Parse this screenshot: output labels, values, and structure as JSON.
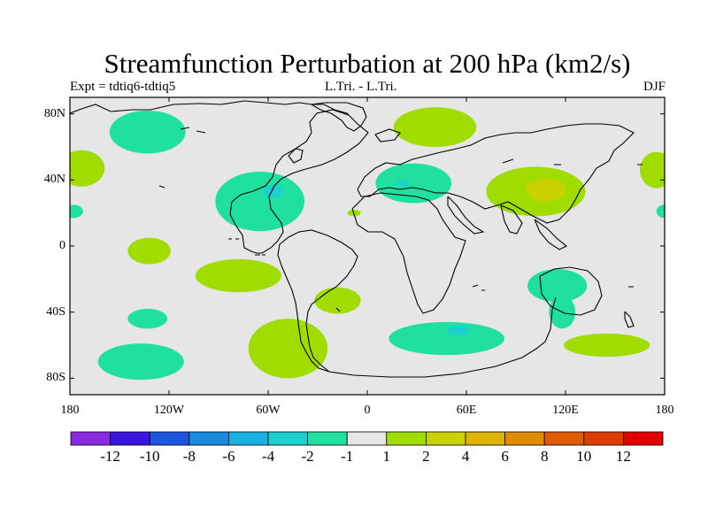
{
  "title": "Streamfunction Perturbation at 200 hPa (km2/s)",
  "left_subtitle": "Expt = tdtiq6-tdtiq5",
  "center_subtitle": "L.Tri. - L.Tri.",
  "right_subtitle": "DJF",
  "x_axis": {
    "tick_labels": [
      "180",
      "120W",
      "60W",
      "0",
      "60E",
      "120E",
      "180"
    ],
    "tick_lon": [
      -180,
      -120,
      -60,
      0,
      60,
      120,
      180
    ]
  },
  "y_axis": {
    "tick_labels": [
      "80N",
      "40N",
      "0",
      "40S",
      "80S"
    ],
    "tick_lat": [
      80,
      40,
      0,
      -40,
      -80
    ]
  },
  "colorbar": {
    "labels": [
      "-12",
      "-10",
      "-8",
      "-6",
      "-4",
      "-2",
      "-1",
      "1",
      "2",
      "4",
      "6",
      "8",
      "10",
      "12"
    ],
    "colors": [
      "#8a2be2",
      "#3a14e0",
      "#1e55e0",
      "#1a8ce0",
      "#18b2e0",
      "#1cd0d0",
      "#20e0a0",
      "#e6e6e6",
      "#a0dc00",
      "#c8d200",
      "#dcb400",
      "#e08c00",
      "#e05a00",
      "#e03c00",
      "#e00000"
    ]
  },
  "map": {
    "background_color": "#e6e6e6",
    "contour_levels": [
      -12,
      -10,
      -8,
      -6,
      -4,
      -2,
      -1,
      1,
      2,
      4,
      6,
      8,
      10,
      12
    ],
    "features": [
      {
        "sign": "negative",
        "color": "#20e0a0",
        "lon": -133,
        "lat": 69,
        "rlon": 23,
        "rlat": 13
      },
      {
        "sign": "positive",
        "color": "#a0dc00",
        "lon": -173,
        "lat": 47,
        "rlon": 14,
        "rlat": 11
      },
      {
        "sign": "negative",
        "color": "#20e0a0",
        "lon": -178,
        "lat": 21,
        "rlon": 6,
        "rlat": 4
      },
      {
        "sign": "negative",
        "color": "#20e0a0",
        "lon": -65,
        "lat": 27,
        "rlon": 27,
        "rlat": 18
      },
      {
        "sign": "negative",
        "color": "#1cd0d0",
        "lon": -57,
        "lat": 33,
        "rlon": 6,
        "rlat": 4
      },
      {
        "sign": "positive",
        "color": "#a0dc00",
        "lon": -132,
        "lat": -3,
        "rlon": 13,
        "rlat": 8
      },
      {
        "sign": "positive",
        "color": "#a0dc00",
        "lon": -78,
        "lat": -18,
        "rlon": 26,
        "rlat": 10
      },
      {
        "sign": "negative",
        "color": "#20e0a0",
        "lon": -133,
        "lat": -44,
        "rlon": 12,
        "rlat": 6
      },
      {
        "sign": "negative",
        "color": "#20e0a0",
        "lon": -137,
        "lat": -70,
        "rlon": 26,
        "rlat": 11
      },
      {
        "sign": "positive",
        "color": "#a0dc00",
        "lon": -48,
        "lat": -62,
        "rlon": 24,
        "rlat": 18
      },
      {
        "sign": "positive",
        "color": "#a0dc00",
        "lon": -18,
        "lat": -33,
        "rlon": 14,
        "rlat": 8
      },
      {
        "sign": "positive",
        "color": "#a0dc00",
        "lon": 41,
        "lat": 72,
        "rlon": 25,
        "rlat": 12
      },
      {
        "sign": "negative",
        "color": "#20e0a0",
        "lon": 28,
        "lat": 38,
        "rlon": 23,
        "rlat": 12
      },
      {
        "sign": "negative",
        "color": "#1cd0d0",
        "lon": 22,
        "lat": 38,
        "rlon": 4,
        "rlat": 2
      },
      {
        "sign": "positive",
        "color": "#a0dc00",
        "lon": -8,
        "lat": 20,
        "rlon": 4,
        "rlat": 2
      },
      {
        "sign": "positive",
        "color": "#a0dc00",
        "lon": 102,
        "lat": 33,
        "rlon": 30,
        "rlat": 15
      },
      {
        "sign": "positive",
        "color": "#c8d200",
        "lon": 108,
        "lat": 34,
        "rlon": 12,
        "rlat": 7
      },
      {
        "sign": "positive",
        "color": "#a0dc00",
        "lon": 175,
        "lat": 46,
        "rlon": 10,
        "rlat": 11
      },
      {
        "sign": "negative",
        "color": "#20e0a0",
        "lon": 180,
        "lat": 21,
        "rlon": 5,
        "rlat": 4
      },
      {
        "sign": "negative",
        "color": "#20e0a0",
        "lon": 115,
        "lat": -24,
        "rlon": 18,
        "rlat": 10
      },
      {
        "sign": "negative",
        "color": "#20e0a0",
        "lon": 118,
        "lat": -40,
        "rlon": 8,
        "rlat": 10
      },
      {
        "sign": "negative",
        "color": "#20e0a0",
        "lon": 48,
        "lat": -56,
        "rlon": 35,
        "rlat": 10
      },
      {
        "sign": "negative",
        "color": "#1cd0d0",
        "lon": 55,
        "lat": -51,
        "rlon": 7,
        "rlat": 3
      },
      {
        "sign": "positive",
        "color": "#a0dc00",
        "lon": 145,
        "lat": -60,
        "rlon": 26,
        "rlat": 7
      }
    ]
  }
}
